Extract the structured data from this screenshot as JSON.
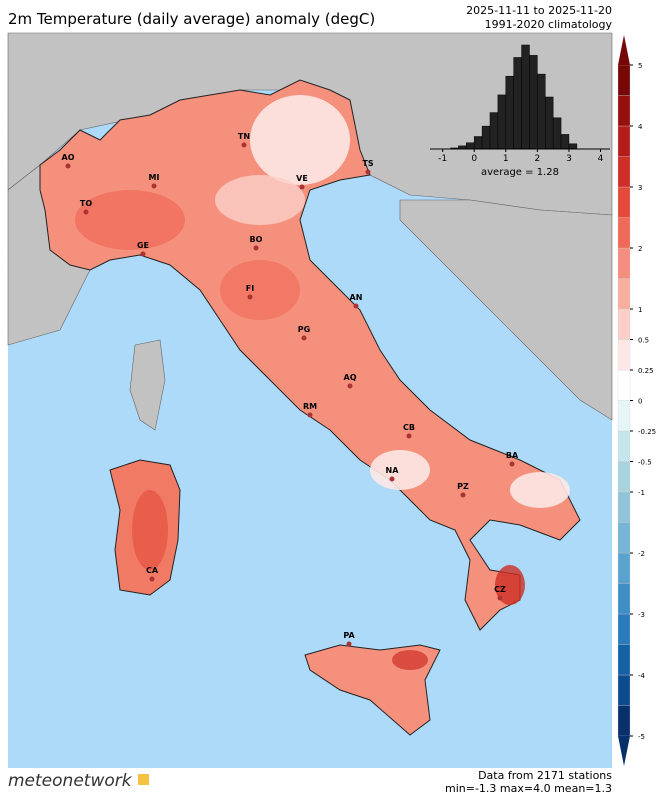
{
  "header": {
    "title": "2m Temperature (daily average) anomaly (degC)",
    "period": "2025-11-11 to 2025-11-20",
    "climatology": "1991-2020 climatology"
  },
  "cities": [
    "AO",
    "TO",
    "MI",
    "GE",
    "TN",
    "VE",
    "TS",
    "BO",
    "FI",
    "AN",
    "PG",
    "AQ",
    "RM",
    "CB",
    "NA",
    "BA",
    "PZ",
    "CZ",
    "CA",
    "PA"
  ],
  "histogram": {
    "type": "histogram",
    "bins": [
      -0.75,
      -0.5,
      -0.25,
      0,
      0.25,
      0.5,
      0.75,
      1,
      1.25,
      1.5,
      1.75,
      2,
      2.25,
      2.5,
      2.75,
      3,
      3.25
    ],
    "counts": [
      1,
      3,
      6,
      12,
      22,
      35,
      52,
      70,
      88,
      100,
      90,
      72,
      50,
      30,
      14,
      5
    ],
    "color": "#222222",
    "xlim": [
      -1.4,
      4.3
    ],
    "xticks": [
      -1,
      0,
      1,
      2,
      3,
      4
    ],
    "annotation": "average = 1.28"
  },
  "colorbar": {
    "levels": [
      -5,
      -4.5,
      -4,
      -3.5,
      -3,
      -2.5,
      -2,
      -1.5,
      -1,
      -0.5,
      -0.25,
      0,
      0.25,
      0.5,
      1,
      1.5,
      2,
      2.5,
      3,
      3.5,
      4,
      4.5,
      5
    ],
    "colors": [
      "#08306b",
      "#0b4b8f",
      "#1561a8",
      "#2a7bbb",
      "#3f8fc6",
      "#5aa3cf",
      "#75b5d6",
      "#92c4d8",
      "#a9d3de",
      "#c6e6ec",
      "#e6f5f8",
      "#ffffff",
      "#fde8e6",
      "#fbcfc8",
      "#f8ada1",
      "#f58e7e",
      "#ef6a57",
      "#e4493a",
      "#cf2e26",
      "#b71c1c",
      "#96100f",
      "#760808"
    ],
    "ticks": [
      5,
      4,
      3,
      2,
      1,
      0.5,
      0.25,
      0,
      -0.25,
      -0.5,
      -1,
      -2,
      -3,
      -4,
      -5
    ]
  },
  "footer": {
    "logo": "meteonetwork",
    "stations": "Data from 2171 stations",
    "stats": "min=-1.3 max=4.0 mean=1.3"
  }
}
